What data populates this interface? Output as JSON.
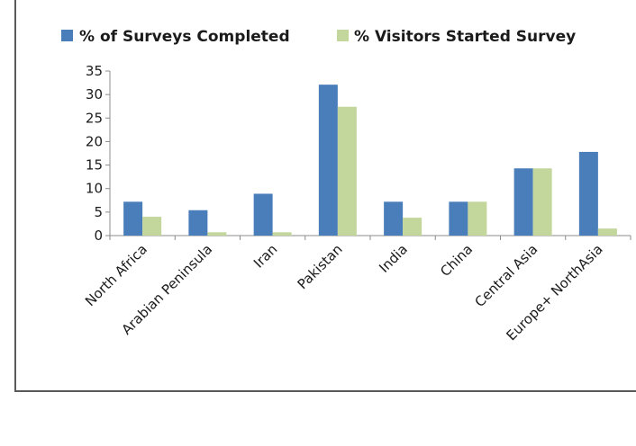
{
  "chart_data": {
    "type": "bar",
    "categories": [
      "North Africa",
      "Arabian Peninsula",
      "Iran",
      "Pakistan",
      "India",
      "China",
      "Central Asia",
      "Europe+ NorthAsia"
    ],
    "series": [
      {
        "name": "% of Surveys Completed",
        "color": "#4a7ebb",
        "values": [
          7.2,
          5.4,
          8.9,
          32.1,
          7.2,
          7.2,
          14.3,
          17.8
        ]
      },
      {
        "name": "% Visitors Started Survey",
        "color": "#c3d69b",
        "values": [
          4.0,
          0.7,
          0.7,
          27.4,
          3.8,
          7.2,
          14.3,
          1.5
        ]
      }
    ],
    "ylim": [
      0,
      35
    ],
    "yticks": [
      0,
      5,
      10,
      15,
      20,
      25,
      30,
      35
    ],
    "legend_position": "top",
    "grid": false
  }
}
